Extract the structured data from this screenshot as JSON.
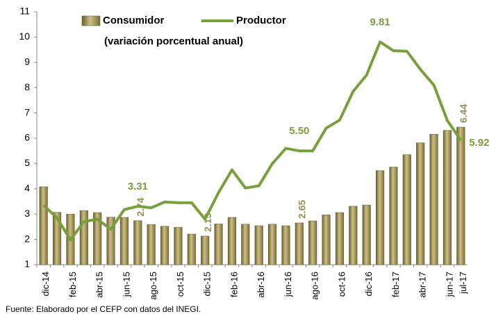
{
  "chart_data": {
    "type": "bar",
    "subtitle": "(variación porcentual anual)",
    "source": "Fuente: Elaborado por el CEFP con datos del INEGI.",
    "categories": [
      "dic-14",
      null,
      "feb-15",
      null,
      "abr-15",
      null,
      "jun-15",
      null,
      "ago-15",
      null,
      "oct-15",
      null,
      "dic-15",
      null,
      "feb-16",
      null,
      "abr-16",
      null,
      "jun-16",
      null,
      "ago-16",
      null,
      "oct-16",
      null,
      "dic-16",
      null,
      "feb-17",
      null,
      "abr-17",
      null,
      "jun-17",
      "jul-17"
    ],
    "series": [
      {
        "name": "Consumidor",
        "type": "bar",
        "color": "#8f8240",
        "values": [
          4.08,
          3.07,
          3.0,
          3.14,
          3.06,
          2.88,
          2.87,
          2.74,
          2.59,
          2.52,
          2.48,
          2.21,
          2.13,
          2.61,
          2.87,
          2.6,
          2.54,
          2.6,
          2.54,
          2.65,
          2.73,
          2.97,
          3.06,
          3.31,
          3.36,
          4.72,
          4.86,
          5.35,
          5.82,
          6.16,
          6.31,
          6.44
        ],
        "value_labels": [
          null,
          null,
          null,
          null,
          null,
          null,
          null,
          "2.74",
          null,
          null,
          null,
          null,
          "2.13",
          null,
          null,
          null,
          null,
          null,
          null,
          "2.65",
          null,
          null,
          null,
          null,
          null,
          null,
          null,
          null,
          null,
          null,
          null,
          "6.44"
        ]
      },
      {
        "name": "Productor",
        "type": "line",
        "color": "#77a03a",
        "values": [
          3.35,
          2.85,
          1.98,
          2.7,
          2.8,
          2.4,
          3.18,
          3.31,
          3.25,
          3.48,
          3.45,
          3.45,
          2.8,
          3.85,
          4.75,
          4.03,
          4.12,
          5.0,
          5.6,
          5.5,
          5.5,
          6.4,
          6.72,
          7.85,
          8.5,
          9.81,
          9.46,
          9.44,
          8.72,
          8.1,
          6.7,
          5.92
        ],
        "value_labels": [
          null,
          null,
          null,
          null,
          null,
          null,
          null,
          "3.31",
          null,
          null,
          null,
          null,
          null,
          null,
          null,
          null,
          null,
          null,
          null,
          "5.50",
          null,
          null,
          null,
          null,
          null,
          "9.81",
          null,
          null,
          null,
          null,
          null,
          "5.92"
        ]
      }
    ],
    "ylim": [
      1,
      11
    ],
    "yticks": [
      1,
      2,
      3,
      4,
      5,
      6,
      7,
      8,
      9,
      10,
      11
    ],
    "grid": false
  }
}
